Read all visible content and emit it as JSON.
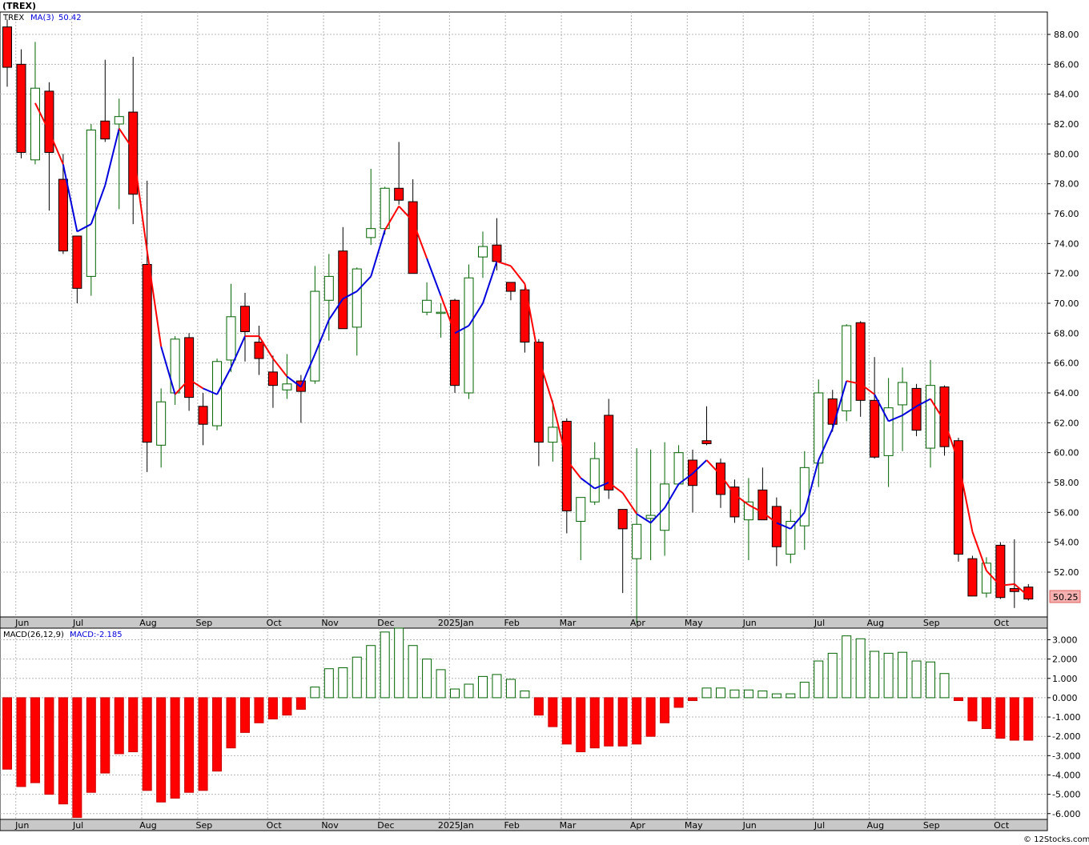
{
  "header": {
    "symbol": "(TREX)",
    "copyright": "© 12Stocks.com"
  },
  "colors": {
    "up_candle": "#006400",
    "down_candle": "#ff0000",
    "ma_up": "#0000dd",
    "ma_down": "#ff0000",
    "macd_pos": "#006400",
    "macd_neg": "#ff0000"
  },
  "chart_data": [
    {
      "type": "candlestick",
      "legend": {
        "symbol": "TREX",
        "ma_label": "MA(3)",
        "ma_value": "50.42"
      },
      "last_price_label": "50.25",
      "ylim": [
        49,
        89.5
      ],
      "yticks": [
        52,
        54,
        56,
        58,
        60,
        62,
        64,
        66,
        68,
        70,
        72,
        74,
        76,
        78,
        80,
        82,
        84,
        86,
        88
      ],
      "ytick_labels": [
        "52.00",
        "54.00",
        "56.00",
        "58.00",
        "60.00",
        "62.00",
        "64.00",
        "66.00",
        "68.00",
        "70.00",
        "72.00",
        "74.00",
        "76.00",
        "78.00",
        "80.00",
        "82.00",
        "84.00",
        "86.00",
        "88.00"
      ],
      "month_labels": [
        "Jun",
        "Jul",
        "Aug",
        "Sep",
        "Oct",
        "Nov",
        "Dec",
        "2025Jan",
        "Feb",
        "Mar",
        "Apr",
        "May",
        "Jun",
        "Jul",
        "Aug",
        "Sep",
        "Oct"
      ],
      "month_start_index": [
        1,
        5,
        10,
        14,
        19,
        23,
        27,
        32,
        36,
        40,
        45,
        49,
        53,
        58,
        62,
        66,
        71
      ],
      "candles": [
        [
          88.5,
          89.0,
          84.5,
          85.8
        ],
        [
          86.0,
          87.0,
          79.7,
          80.1
        ],
        [
          79.6,
          87.5,
          79.3,
          84.4
        ],
        [
          84.2,
          84.8,
          76.2,
          80.1
        ],
        [
          78.3,
          80.0,
          73.3,
          73.5
        ],
        [
          74.5,
          74.5,
          70.0,
          71.0
        ],
        [
          71.8,
          82.0,
          70.5,
          81.6
        ],
        [
          82.2,
          86.3,
          80.8,
          81.0
        ],
        [
          82.0,
          83.7,
          76.3,
          82.5
        ],
        [
          82.8,
          86.5,
          75.3,
          77.3
        ],
        [
          72.6,
          78.2,
          58.7,
          60.7
        ],
        [
          60.5,
          64.3,
          59.0,
          63.4
        ],
        [
          64.0,
          67.8,
          63.2,
          67.6
        ],
        [
          67.7,
          68.0,
          62.8,
          63.7
        ],
        [
          63.1,
          64.0,
          60.5,
          61.9
        ],
        [
          61.8,
          66.3,
          61.5,
          66.1
        ],
        [
          66.2,
          71.3,
          65.4,
          69.1
        ],
        [
          69.8,
          70.7,
          66.1,
          68.1
        ],
        [
          67.4,
          68.5,
          65.2,
          66.3
        ],
        [
          65.4,
          66.5,
          63.0,
          64.5
        ],
        [
          64.2,
          66.6,
          63.6,
          64.6
        ],
        [
          64.8,
          65.2,
          62.0,
          64.1
        ],
        [
          64.8,
          72.5,
          64.6,
          70.8
        ],
        [
          70.2,
          73.3,
          67.5,
          71.8
        ],
        [
          73.5,
          75.1,
          68.3,
          68.3
        ],
        [
          68.4,
          72.4,
          66.5,
          72.3
        ],
        [
          74.4,
          79.0,
          73.9,
          75.0
        ],
        [
          75.0,
          77.8,
          74.6,
          77.7
        ],
        [
          77.7,
          80.8,
          76.6,
          76.9
        ],
        [
          76.8,
          78.3,
          72.0,
          72.0
        ],
        [
          69.4,
          71.4,
          69.2,
          70.2
        ],
        [
          69.4,
          70.0,
          67.7,
          69.4
        ],
        [
          70.2,
          70.3,
          64.0,
          64.5
        ],
        [
          64.0,
          72.6,
          63.6,
          71.7
        ],
        [
          73.1,
          74.8,
          71.7,
          73.8
        ],
        [
          73.9,
          75.7,
          72.2,
          72.8
        ],
        [
          71.4,
          71.2,
          70.2,
          70.8
        ],
        [
          70.9,
          71.2,
          66.7,
          67.4
        ],
        [
          67.4,
          67.6,
          59.1,
          60.7
        ],
        [
          60.7,
          63.5,
          59.4,
          61.7
        ],
        [
          62.1,
          62.3,
          54.6,
          56.1
        ],
        [
          55.4,
          57.0,
          52.8,
          57.0
        ],
        [
          56.7,
          60.7,
          56.5,
          59.6
        ],
        [
          62.5,
          63.6,
          56.9,
          57.5
        ],
        [
          56.2,
          56.2,
          50.6,
          54.9
        ],
        [
          52.9,
          60.3,
          48.6,
          55.2
        ],
        [
          55.6,
          60.2,
          52.8,
          55.8
        ],
        [
          54.8,
          60.7,
          53.1,
          57.9
        ],
        [
          57.9,
          60.5,
          57.8,
          60.0
        ],
        [
          59.5,
          60.2,
          56.0,
          57.8
        ],
        [
          60.8,
          63.1,
          60.5,
          60.6
        ],
        [
          59.3,
          59.6,
          56.3,
          57.2
        ],
        [
          57.7,
          58.2,
          55.3,
          55.7
        ],
        [
          55.5,
          58.3,
          52.8,
          56.7
        ],
        [
          57.5,
          59.0,
          55.5,
          55.5
        ],
        [
          56.4,
          57.0,
          52.4,
          53.7
        ],
        [
          53.2,
          56.2,
          52.6,
          55.4
        ],
        [
          55.1,
          60.1,
          53.5,
          59.0
        ],
        [
          59.3,
          64.9,
          57.7,
          64.0
        ],
        [
          63.6,
          64.2,
          61.4,
          61.9
        ],
        [
          62.8,
          68.6,
          62.1,
          68.5
        ],
        [
          68.7,
          68.8,
          62.4,
          63.5
        ],
        [
          63.5,
          66.4,
          59.6,
          59.7
        ],
        [
          59.8,
          65.0,
          57.7,
          63.0
        ],
        [
          63.2,
          65.7,
          60.1,
          64.7
        ],
        [
          64.3,
          64.6,
          61.1,
          61.5
        ],
        [
          60.3,
          66.2,
          59.0,
          64.5
        ],
        [
          64.4,
          64.5,
          59.8,
          60.4
        ],
        [
          60.8,
          61.0,
          52.7,
          53.2
        ],
        [
          52.9,
          53.1,
          50.4,
          50.4
        ],
        [
          50.6,
          53.0,
          50.3,
          52.6
        ],
        [
          53.8,
          54.0,
          50.2,
          50.3
        ],
        [
          50.9,
          54.2,
          49.6,
          50.7
        ],
        [
          51.0,
          51.2,
          50.1,
          50.2
        ]
      ],
      "ma3": [
        null,
        null,
        83.4,
        81.5,
        79.3,
        74.8,
        75.3,
        77.9,
        81.7,
        80.3,
        73.5,
        67.1,
        63.9,
        64.9,
        64.3,
        63.9,
        65.7,
        67.8,
        67.8,
        66.3,
        65.1,
        64.4,
        66.6,
        68.9,
        70.3,
        70.8,
        71.8,
        74.9,
        76.5,
        75.5,
        73.0,
        70.5,
        68.0,
        68.5,
        70.0,
        72.8,
        72.5,
        71.3,
        66.3,
        63.3,
        59.5,
        58.3,
        57.6,
        58.0,
        57.3,
        55.9,
        55.3,
        56.3,
        57.9,
        58.6,
        59.5,
        58.5,
        57.2,
        56.5,
        56.0,
        55.3,
        54.9,
        56.0,
        59.5,
        61.6,
        64.8,
        64.6,
        63.9,
        62.1,
        62.5,
        63.1,
        63.6,
        62.1,
        59.4,
        54.7,
        52.1,
        51.1,
        51.2,
        50.4
      ],
      "ma_direction": [
        0,
        0,
        0,
        0,
        0,
        1,
        1,
        1,
        1,
        0,
        0,
        0,
        1,
        0,
        0,
        1,
        1,
        1,
        0,
        0,
        0,
        1,
        1,
        1,
        1,
        1,
        1,
        1,
        0,
        0,
        0,
        1,
        0,
        1,
        1,
        1,
        0,
        0,
        0,
        0,
        0,
        0,
        1,
        1,
        0,
        0,
        1,
        1,
        1,
        1,
        1,
        0,
        0,
        0,
        0,
        0,
        1,
        1,
        1,
        1,
        1,
        0,
        0,
        1,
        1,
        1,
        1,
        0,
        0,
        0,
        0,
        0,
        0,
        0
      ]
    },
    {
      "type": "bar",
      "legend": {
        "label": "MACD(26,12,9)",
        "value_label": "MACD:-2.185"
      },
      "ylim": [
        -6.3,
        3.6
      ],
      "yticks": [
        -6,
        -5,
        -4,
        -3,
        -2,
        -1,
        0,
        1,
        2,
        3
      ],
      "ytick_labels": [
        "-6.000",
        "-5.000",
        "-4.000",
        "-3.000",
        "-2.000",
        "-1.000",
        "0.000",
        "1.000",
        "2.000",
        "3.000"
      ],
      "month_labels": [
        "Jun",
        "Jul",
        "Aug",
        "Sep",
        "Oct",
        "Nov",
        "Dec",
        "2025Jan",
        "Feb",
        "Mar",
        "Apr",
        "May",
        "Jun",
        "Jul",
        "Aug",
        "Sep",
        "Oct"
      ],
      "values": [
        -3.7,
        -4.6,
        -4.4,
        -5.0,
        -5.5,
        -6.2,
        -4.9,
        -3.9,
        -2.9,
        -2.8,
        -4.8,
        -5.4,
        -5.2,
        -4.9,
        -4.8,
        -3.8,
        -2.6,
        -1.8,
        -1.3,
        -1.1,
        -0.9,
        -0.6,
        0.55,
        1.5,
        1.55,
        2.1,
        2.7,
        3.4,
        3.6,
        2.7,
        2.0,
        1.45,
        0.45,
        0.7,
        1.1,
        1.2,
        0.95,
        0.35,
        -0.9,
        -1.5,
        -2.4,
        -2.8,
        -2.6,
        -2.5,
        -2.5,
        -2.4,
        -2.0,
        -1.3,
        -0.5,
        -0.15,
        0.5,
        0.5,
        0.4,
        0.4,
        0.35,
        0.2,
        0.2,
        0.8,
        1.9,
        2.3,
        3.2,
        3.05,
        2.4,
        2.3,
        2.35,
        1.9,
        1.85,
        1.25,
        -0.15,
        -1.2,
        -1.6,
        -2.1,
        -2.2,
        -2.2
      ]
    }
  ]
}
